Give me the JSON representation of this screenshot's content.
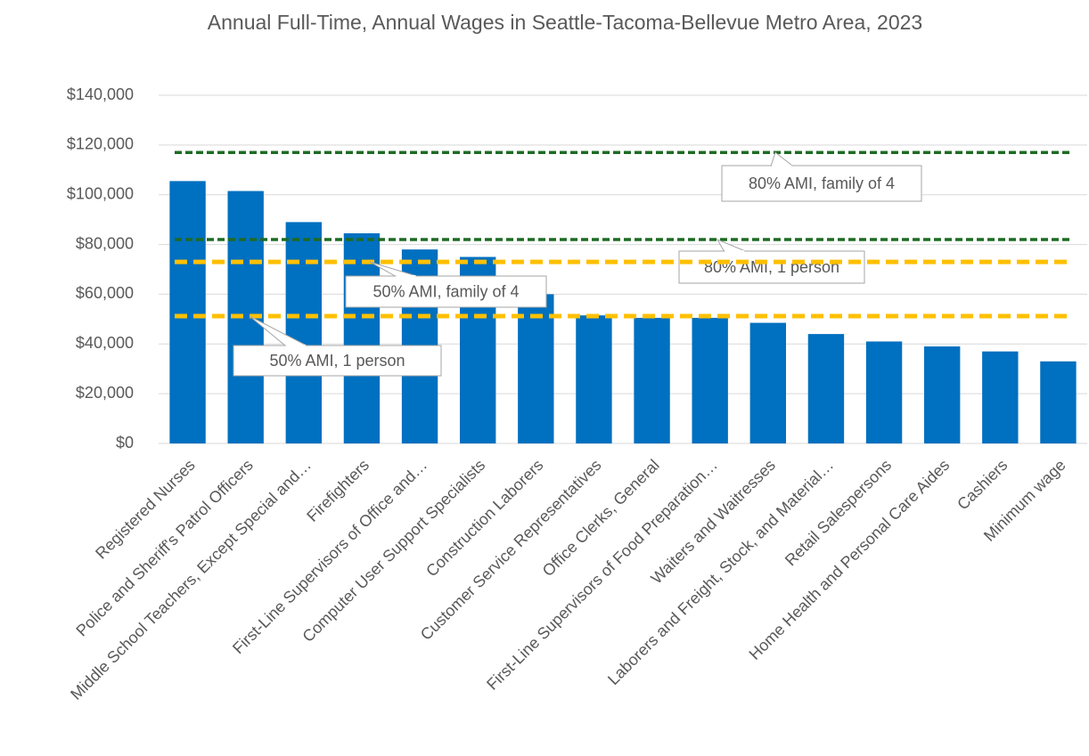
{
  "chart_data": {
    "type": "bar",
    "title": "Annual Full-Time, Annual Wages in Seattle-Tacoma-Bellevue Metro Area, 2023",
    "categories": [
      "Registered Nurses",
      "Police and Sheriff's Patrol Officers",
      "Middle School Teachers, Except Special and…",
      "Firefighters",
      "First-Line Supervisors of Office and…",
      "Computer User Support Specialists",
      "Construction Laborers",
      "Customer Service Representatives",
      "Office Clerks, General",
      "First-Line Supervisors of Food Preparation…",
      "Waiters and Waitresses",
      "Laborers and Freight, Stock, and Material…",
      "Retail Salespersons",
      "Home Health and Personal Care Aides",
      "Cashiers",
      "Minimum wage"
    ],
    "values": [
      105500,
      101500,
      89000,
      84500,
      78000,
      75000,
      60000,
      51500,
      50500,
      50500,
      48500,
      44000,
      41000,
      39000,
      37000,
      33000
    ],
    "color": "#0070c0",
    "ylim": [
      0,
      140000
    ],
    "yticks": [
      {
        "value": 0,
        "label": "$0"
      },
      {
        "value": 20000,
        "label": "$20,000"
      },
      {
        "value": 40000,
        "label": "$40,000"
      },
      {
        "value": 60000,
        "label": "$60,000"
      },
      {
        "value": 80000,
        "label": "$80,000"
      },
      {
        "value": 100000,
        "label": "$100,000"
      },
      {
        "value": 120000,
        "label": "$120,000"
      },
      {
        "value": 140000,
        "label": "$140,000"
      }
    ],
    "grid": true,
    "reference_lines": [
      {
        "name": "80% AMI, family of 4",
        "value": 117000,
        "color": "#1e6b24"
      },
      {
        "name": "80% AMI, 1 person",
        "value": 82000,
        "color": "#1e6b24"
      },
      {
        "name": "50% AMI, family of 4",
        "value": 73000,
        "color": "#ffc000"
      },
      {
        "name": "50% AMI, 1 person",
        "value": 51200,
        "color": "#ffc000"
      }
    ]
  }
}
